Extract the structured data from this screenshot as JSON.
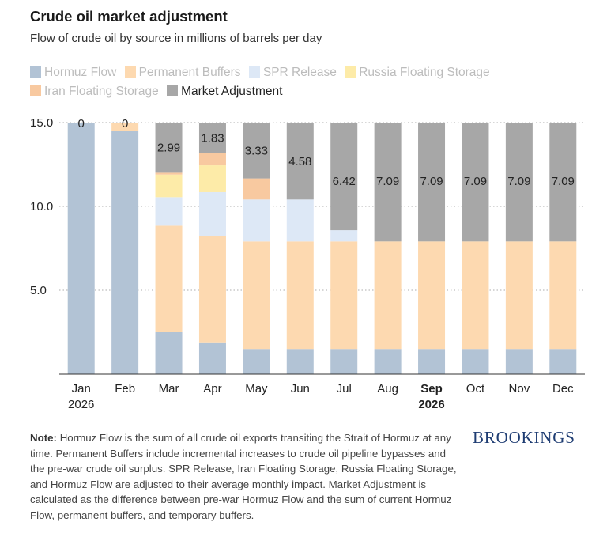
{
  "title": "Crude oil market adjustment",
  "subtitle": "Flow of crude oil by source in millions of barrels per day",
  "note": {
    "label": "Note:",
    "text": "Hormuz Flow is the sum of all crude oil exports transiting the Strait of Hormuz at any time. Permanent Buffers include incremental increases to crude oil pipeline bypasses and the pre-war crude oil surplus. SPR Release, Iran Floating Storage, Russia Floating Storage, and Hormuz Flow are adjusted to their average monthly impact. Market Adjustment is calculated as the difference between pre-war Hormuz Flow and the sum of current Hormuz Flow, permanent buffers, and temporary buffers."
  },
  "logo": "BROOKINGS",
  "legend": [
    {
      "label": "Hormuz Flow",
      "color": "#b2c3d5",
      "muted": true
    },
    {
      "label": "Permanent Buffers",
      "color": "#fdd9b0",
      "muted": true
    },
    {
      "label": "SPR Release",
      "color": "#dde8f6",
      "muted": true
    },
    {
      "label": "Russia Floating Storage",
      "color": "#fdeba8",
      "muted": true
    },
    {
      "label": "Iran Floating Storage",
      "color": "#f8c9a0",
      "muted": true
    },
    {
      "label": "Market Adjustment",
      "color": "#a7a7a7",
      "muted": false
    }
  ],
  "chart_data": {
    "type": "bar",
    "stacked": true,
    "categories": [
      {
        "label": "Jan",
        "label2": "2026",
        "bold": false
      },
      {
        "label": "Feb",
        "label2": "",
        "bold": false
      },
      {
        "label": "Mar",
        "label2": "",
        "bold": false
      },
      {
        "label": "Apr",
        "label2": "",
        "bold": false
      },
      {
        "label": "May",
        "label2": "",
        "bold": false
      },
      {
        "label": "Jun",
        "label2": "",
        "bold": false
      },
      {
        "label": "Jul",
        "label2": "",
        "bold": false
      },
      {
        "label": "Aug",
        "label2": "",
        "bold": false
      },
      {
        "label": "Sep",
        "label2": "2026",
        "bold": true
      },
      {
        "label": "Oct",
        "label2": "",
        "bold": false
      },
      {
        "label": "Nov",
        "label2": "",
        "bold": false
      },
      {
        "label": "Dec",
        "label2": "",
        "bold": false
      }
    ],
    "series": [
      {
        "name": "Hormuz Flow",
        "color": "#b2c3d5",
        "values": [
          15.0,
          14.5,
          2.5,
          1.85,
          1.5,
          1.5,
          1.5,
          1.5,
          1.5,
          1.5,
          1.5,
          1.5
        ]
      },
      {
        "name": "Permanent Buffers",
        "color": "#fdd9b0",
        "values": [
          0,
          0.5,
          6.35,
          6.4,
          6.41,
          6.41,
          6.41,
          6.41,
          6.41,
          6.41,
          6.41,
          6.41
        ]
      },
      {
        "name": "SPR Release",
        "color": "#dde8f6",
        "values": [
          0,
          0,
          1.7,
          2.6,
          2.5,
          2.5,
          0.67,
          0,
          0,
          0,
          0,
          0
        ]
      },
      {
        "name": "Russia Floating Storage",
        "color": "#fdeba8",
        "values": [
          0,
          0,
          1.35,
          1.6,
          0,
          0,
          0,
          0,
          0,
          0,
          0,
          0
        ]
      },
      {
        "name": "Iran Floating Storage",
        "color": "#f8c9a0",
        "values": [
          0,
          0,
          0.11,
          0.72,
          1.26,
          0,
          0,
          0,
          0,
          0,
          0,
          0
        ]
      },
      {
        "name": "Market Adjustment",
        "color": "#a7a7a7",
        "values": [
          0,
          0,
          2.99,
          1.83,
          3.33,
          4.58,
          6.42,
          7.09,
          7.09,
          7.09,
          7.09,
          7.09
        ]
      }
    ],
    "bar_labels": [
      "0",
      "0",
      "2.99",
      "1.83",
      "3.33",
      "4.58",
      "6.42",
      "7.09",
      "7.09",
      "7.09",
      "7.09",
      "7.09"
    ],
    "y_ticks": [
      "5.0",
      "10.0",
      "15.0"
    ],
    "ylim": [
      0,
      15.0
    ],
    "grid": true,
    "legend_position": "top"
  }
}
